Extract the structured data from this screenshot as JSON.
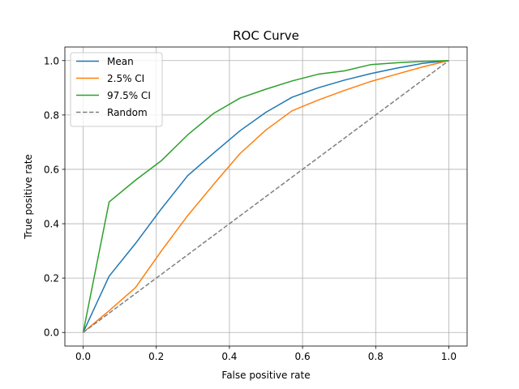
{
  "chart_data": {
    "type": "line",
    "title": "ROC Curve",
    "xlabel": "False positive rate",
    "ylabel": "True positive rate",
    "xlim": [
      -0.05,
      1.05
    ],
    "ylim": [
      -0.05,
      1.05
    ],
    "xticks": [
      "0.0",
      "0.2",
      "0.4",
      "0.6",
      "0.8",
      "1.0"
    ],
    "yticks": [
      "0.0",
      "0.2",
      "0.4",
      "0.6",
      "0.8",
      "1.0"
    ],
    "grid": true,
    "legend_position": "top-left",
    "series": [
      {
        "name": "Mean",
        "color": "#1f77b4",
        "dash": "solid",
        "x": [
          0.0,
          0.071,
          0.143,
          0.214,
          0.286,
          0.357,
          0.429,
          0.5,
          0.571,
          0.643,
          0.714,
          0.786,
          0.857,
          0.929,
          1.0
        ],
        "y": [
          0.0,
          0.207,
          0.327,
          0.455,
          0.577,
          0.66,
          0.742,
          0.81,
          0.865,
          0.9,
          0.928,
          0.952,
          0.972,
          0.99,
          1.0
        ]
      },
      {
        "name": "2.5% CI",
        "color": "#ff7f0e",
        "dash": "solid",
        "x": [
          0.0,
          0.071,
          0.143,
          0.214,
          0.286,
          0.357,
          0.429,
          0.5,
          0.571,
          0.643,
          0.714,
          0.786,
          0.857,
          0.929,
          1.0
        ],
        "y": [
          0.0,
          0.08,
          0.165,
          0.3,
          0.43,
          0.545,
          0.658,
          0.745,
          0.815,
          0.855,
          0.89,
          0.923,
          0.95,
          0.977,
          1.0
        ]
      },
      {
        "name": "97.5% CI",
        "color": "#2ca02c",
        "dash": "solid",
        "x": [
          0.0,
          0.071,
          0.143,
          0.214,
          0.286,
          0.357,
          0.429,
          0.5,
          0.571,
          0.643,
          0.714,
          0.786,
          0.857,
          0.929,
          1.0
        ],
        "y": [
          0.0,
          0.48,
          0.56,
          0.632,
          0.727,
          0.806,
          0.862,
          0.895,
          0.925,
          0.95,
          0.962,
          0.985,
          0.992,
          0.997,
          1.0
        ]
      },
      {
        "name": "Random",
        "color": "#7f7f7f",
        "dash": "dashed",
        "x": [
          0.0,
          1.0
        ],
        "y": [
          0.0,
          1.0
        ]
      }
    ]
  }
}
